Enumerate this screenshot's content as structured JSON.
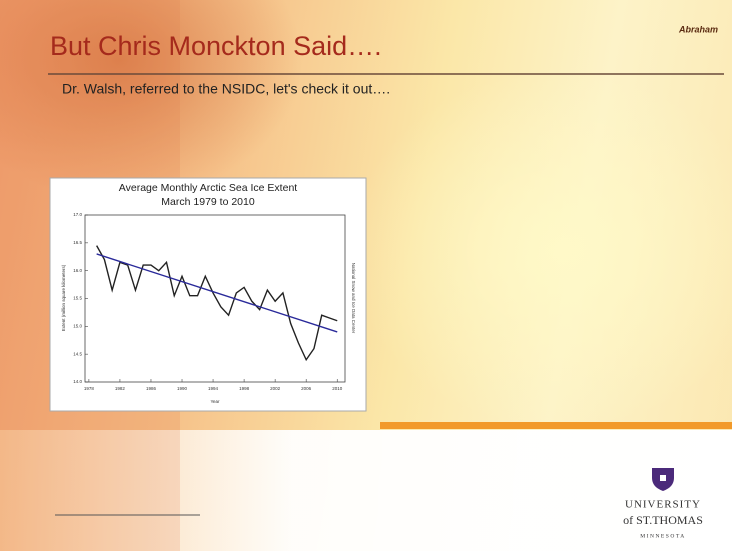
{
  "author": "Abraham",
  "title": "But Chris Monckton Said….",
  "subtitle": "Dr. Walsh, referred to the NSIDC, let's check it out….",
  "logo": {
    "line1": "UNIVERSITY",
    "line2": "of ST.THOMAS",
    "line3": "MINNESOTA"
  },
  "chart_data": {
    "type": "line",
    "title": "Average Monthly Arctic Sea Ice Extent",
    "subtitle": "March 1979 to 2010",
    "x_label": "Year",
    "y_label": "Extent (million square kilometers)",
    "side_label": "National Snow and Ice Data Center",
    "x": [
      1979,
      1980,
      1981,
      1982,
      1983,
      1984,
      1985,
      1986,
      1987,
      1988,
      1989,
      1990,
      1991,
      1992,
      1993,
      1994,
      1995,
      1996,
      1997,
      1998,
      1999,
      2000,
      2001,
      2002,
      2003,
      2004,
      2005,
      2006,
      2007,
      2008,
      2009,
      2010
    ],
    "series": [
      {
        "color": "#222222",
        "values": [
          16.45,
          16.2,
          15.65,
          16.15,
          16.1,
          15.65,
          16.1,
          16.1,
          16.0,
          16.15,
          15.55,
          15.9,
          15.55,
          15.55,
          15.9,
          15.6,
          15.35,
          15.2,
          15.6,
          15.7,
          15.45,
          15.3,
          15.65,
          15.45,
          15.6,
          15.05,
          14.7,
          14.4,
          14.6,
          15.2,
          15.15,
          15.1
        ]
      }
    ],
    "trend": {
      "color": "#2a2a9a",
      "x": [
        1979,
        2010
      ],
      "values": [
        16.3,
        14.9
      ]
    },
    "xlim": [
      1977.5,
      2011
    ],
    "ylim": [
      14.0,
      17.0
    ],
    "xticks": [
      1978,
      1982,
      1986,
      1990,
      1994,
      1998,
      2002,
      2006,
      2010
    ],
    "yticks": [
      {
        "value": 14,
        "label": "14.0"
      },
      14.5,
      {
        "value": 15,
        "label": "15.0"
      },
      15.5,
      {
        "value": 16,
        "label": "16.0"
      },
      16.5,
      {
        "value": 17,
        "label": "17.0"
      }
    ]
  }
}
